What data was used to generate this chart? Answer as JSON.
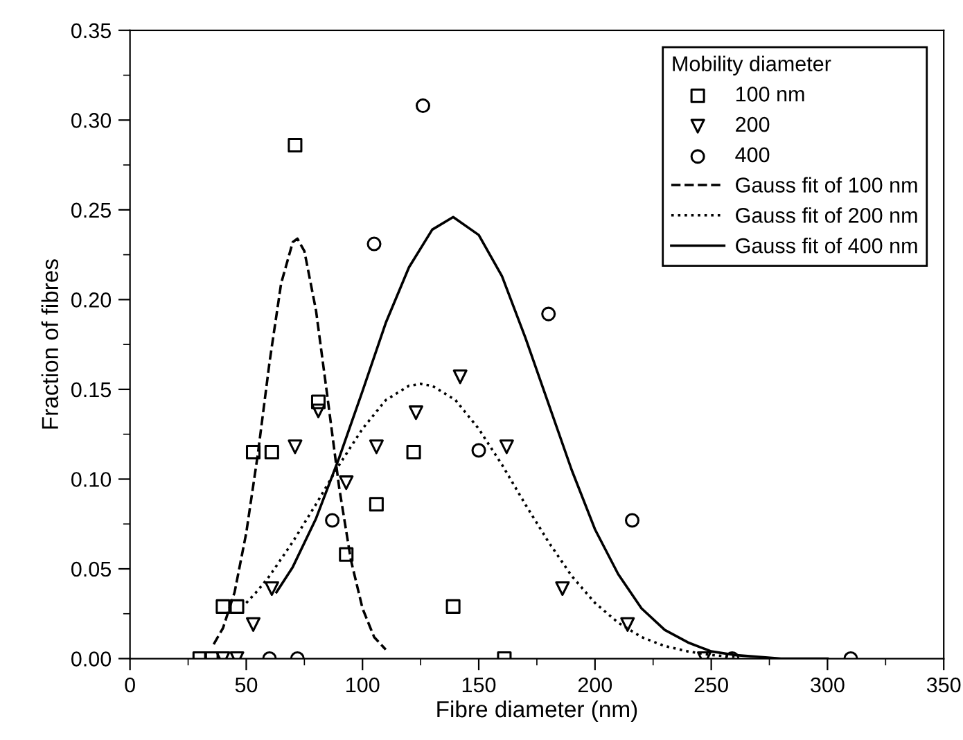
{
  "chart_data": {
    "type": "scatter",
    "xlabel": "Fibre diameter (nm)",
    "ylabel": "Fraction of fibres",
    "legend_title": "Mobility diameter",
    "legend": "top right",
    "grid": false,
    "xlim": [
      0,
      350
    ],
    "xticks": [
      0,
      50,
      100,
      150,
      200,
      250,
      300,
      350
    ],
    "ylim": [
      0,
      0.35
    ],
    "yticks": [
      {
        "value": 0,
        "label": "0.00"
      },
      {
        "value": 0.05,
        "label": "0.05"
      },
      {
        "value": 0.1,
        "label": "0.10"
      },
      {
        "value": 0.15,
        "label": "0.15"
      },
      {
        "value": 0.2,
        "label": "0.20"
      },
      {
        "value": 0.25,
        "label": "0.25"
      },
      {
        "value": 0.3,
        "label": "0.30"
      },
      {
        "value": 0.35,
        "label": "0.35"
      }
    ],
    "series": [
      {
        "name": "100 nm",
        "marker": "square",
        "color": "#000000",
        "x": [
          30,
          35,
          40,
          46,
          53,
          61,
          71,
          81,
          93,
          106,
          122,
          139,
          161
        ],
        "values": [
          0,
          0,
          0.029,
          0.029,
          0.115,
          0.115,
          0.286,
          0.143,
          0.058,
          0.086,
          0.115,
          0.029,
          0
        ]
      },
      {
        "name": "200",
        "marker": "triangle",
        "color": "#000000",
        "x": [
          40,
          46,
          53,
          61,
          71,
          81,
          93,
          106,
          123,
          142,
          162,
          186,
          214,
          247
        ],
        "values": [
          0,
          0,
          0.019,
          0.039,
          0.118,
          0.138,
          0.098,
          0.118,
          0.137,
          0.157,
          0.118,
          0.039,
          0.019,
          0
        ]
      },
      {
        "name": "400",
        "marker": "circle",
        "color": "#000000",
        "x": [
          60,
          72,
          87,
          105,
          126,
          150,
          180,
          216,
          259,
          310
        ],
        "values": [
          0,
          0,
          0.077,
          0.231,
          0.308,
          0.116,
          0.192,
          0.077,
          0,
          0
        ]
      },
      {
        "name": "Gauss fit of 100 nm",
        "type": "line",
        "line_style": "dashed",
        "marker": "none",
        "color": "#000000",
        "x": [
          36,
          40,
          45,
          50,
          55,
          60,
          65,
          70,
          72,
          75,
          80,
          85,
          90,
          95,
          100,
          105,
          110
        ],
        "values": [
          0.008,
          0.017,
          0.037,
          0.07,
          0.114,
          0.165,
          0.209,
          0.232,
          0.234,
          0.227,
          0.194,
          0.145,
          0.095,
          0.055,
          0.028,
          0.012,
          0.005
        ]
      },
      {
        "name": "Gauss fit of 200 nm",
        "type": "line",
        "line_style": "dotted",
        "marker": "none",
        "color": "#000000",
        "x": [
          50,
          55,
          60,
          70,
          80,
          90,
          100,
          110,
          120,
          125,
          130,
          140,
          150,
          160,
          170,
          180,
          190,
          200,
          210,
          220,
          230,
          240,
          250,
          260
        ],
        "values": [
          0.031,
          0.038,
          0.046,
          0.065,
          0.086,
          0.108,
          0.128,
          0.144,
          0.152,
          0.153,
          0.152,
          0.144,
          0.128,
          0.108,
          0.086,
          0.065,
          0.046,
          0.031,
          0.02,
          0.012,
          0.007,
          0.004,
          0.002,
          0.001
        ]
      },
      {
        "name": "Gauss fit of 400 nm",
        "type": "line",
        "line_style": "solid",
        "marker": "none",
        "color": "#000000",
        "x": [
          63,
          70,
          80,
          90,
          100,
          110,
          120,
          130,
          139,
          150,
          160,
          170,
          180,
          190,
          200,
          210,
          220,
          230,
          240,
          250,
          260,
          280,
          300
        ],
        "values": [
          0.037,
          0.051,
          0.078,
          0.112,
          0.149,
          0.187,
          0.218,
          0.239,
          0.246,
          0.236,
          0.213,
          0.179,
          0.142,
          0.105,
          0.072,
          0.047,
          0.028,
          0.016,
          0.009,
          0.004,
          0.002,
          0,
          0
        ]
      }
    ]
  }
}
